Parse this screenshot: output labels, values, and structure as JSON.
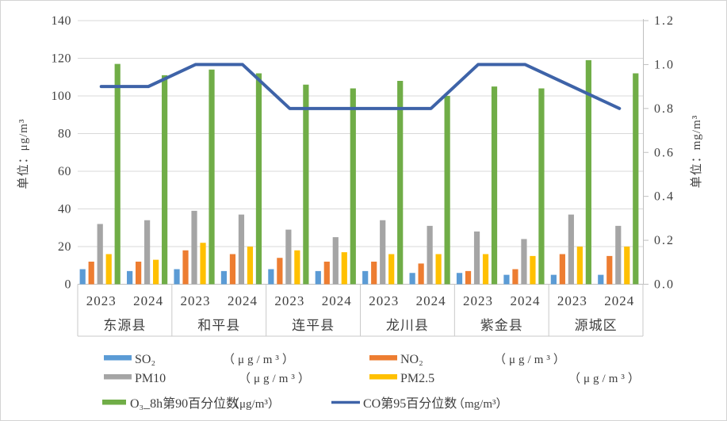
{
  "chart_data": {
    "type": "bar+line",
    "title": "",
    "groups": [
      "东源县",
      "和平县",
      "连平县",
      "龙川县",
      "紫金县",
      "源城区"
    ],
    "years": [
      "2023",
      "2024"
    ],
    "left_axis": {
      "title": "单位：μg/m³",
      "min": 0,
      "max": 140,
      "step": 20,
      "ticks": [
        "0",
        "20",
        "40",
        "60",
        "80",
        "100",
        "120",
        "140"
      ]
    },
    "right_axis": {
      "title": "单位：mg/m³",
      "min": 0,
      "max": 1.2,
      "step": 0.2,
      "ticks": [
        "0.0",
        "0.2",
        "0.4",
        "0.6",
        "0.8",
        "1.0",
        "1.2"
      ]
    },
    "grid": true,
    "legend_position": "bottom",
    "series": [
      {
        "key": "so2",
        "name": "SO₂",
        "unit": "（μg/m³）",
        "type": "bar",
        "axis": "left",
        "color": "#5B9BD5",
        "values": [
          8,
          7,
          8,
          7,
          8,
          7,
          7,
          6,
          6,
          5,
          5,
          5
        ]
      },
      {
        "key": "no2",
        "name": "NO₂",
        "unit": "（μg/m³）",
        "type": "bar",
        "axis": "left",
        "color": "#ED7D31",
        "values": [
          12,
          12,
          18,
          16,
          14,
          12,
          12,
          11,
          7,
          8,
          16,
          15
        ]
      },
      {
        "key": "pm10",
        "name": "PM10",
        "unit": "（μg/m³）",
        "type": "bar",
        "axis": "left",
        "color": "#A5A5A5",
        "values": [
          32,
          34,
          39,
          37,
          29,
          25,
          34,
          31,
          28,
          24,
          37,
          31
        ]
      },
      {
        "key": "pm25",
        "name": "PM2.5",
        "unit": "（μg/m³）",
        "type": "bar",
        "axis": "left",
        "color": "#FFC000",
        "values": [
          16,
          13,
          22,
          20,
          18,
          17,
          16,
          16,
          16,
          15,
          20,
          20
        ]
      },
      {
        "key": "o3",
        "name": "O₃_8h第90百分位数",
        "unit": "（μg/m³）",
        "type": "bar",
        "axis": "left",
        "color": "#70AD47",
        "values": [
          117,
          111,
          114,
          112,
          106,
          104,
          108,
          100,
          105,
          104,
          119,
          112
        ]
      },
      {
        "key": "co",
        "name": "CO第95百分位数",
        "unit": "（mg/m³）",
        "type": "line",
        "axis": "right",
        "color": "#3E63A8",
        "values": [
          0.9,
          0.9,
          1.0,
          1.0,
          0.8,
          0.8,
          0.8,
          0.8,
          1.0,
          1.0,
          0.9,
          0.8
        ]
      }
    ]
  },
  "colors": {
    "gridline": "#D9D9D9",
    "axis_line": "#BFBFBF",
    "table_line": "#C9C9C9",
    "text": "#3F3F3F",
    "background": "#FFFFFF",
    "border": "#D4D4D4"
  }
}
